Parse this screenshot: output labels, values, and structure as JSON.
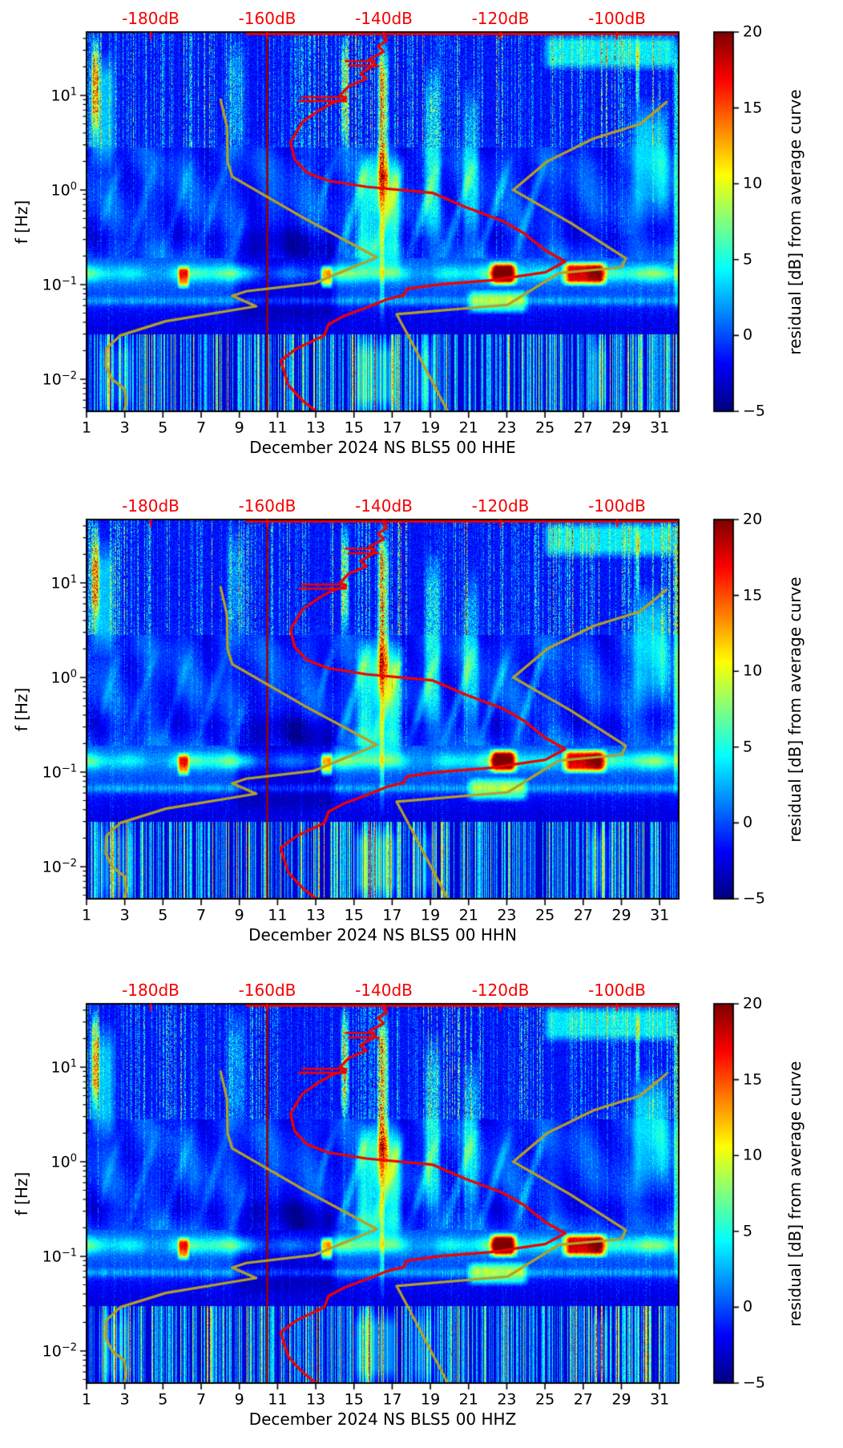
{
  "figure": {
    "background": "#ffffff"
  },
  "chart_data": {
    "type": "heatmap",
    "description": "Three seismic spectrogram panels (PPSD residual vs day-of-month and frequency) with jet colormap, overlaid mean PSD curve (red), low/high noise-model curves (olive), red top dB axis and -160dB dark-red reference line.",
    "panels": [
      {
        "channel": "HHE",
        "xlabel": "December 2024 NS BLS5 00 HHE"
      },
      {
        "channel": "HHN",
        "xlabel": "December 2024 NS BLS5 00 HHN"
      },
      {
        "channel": "HHZ",
        "xlabel": "December 2024 NS BLS5 00 HHZ"
      }
    ],
    "x_axis": {
      "domain_days": [
        1,
        32
      ],
      "ticks": [
        1,
        3,
        5,
        7,
        9,
        11,
        13,
        15,
        17,
        19,
        21,
        23,
        25,
        27,
        29,
        31
      ],
      "tick_labels": [
        "1",
        "3",
        "5",
        "7",
        "9",
        "11",
        "13",
        "15",
        "17",
        "19",
        "21",
        "23",
        "25",
        "27",
        "29",
        "31"
      ]
    },
    "y_axis": {
      "label": "f [Hz]",
      "scale": "log",
      "domain_hz": [
        0.0046,
        46.7
      ],
      "ticks": [
        10,
        1,
        0.1,
        0.01
      ],
      "tick_labels": [
        {
          "mant": "10",
          "exp": "1"
        },
        {
          "mant": "10",
          "exp": "0"
        },
        {
          "mant": "10",
          "exp": "−1"
        },
        {
          "mant": "10",
          "exp": "−2"
        }
      ]
    },
    "top_axis": {
      "color": "#f40000",
      "domain_db": [
        -191,
        -89.4
      ],
      "ticks": [
        -180,
        -160,
        -140,
        -120,
        -100
      ],
      "labels": [
        "-180dB",
        "-160dB",
        "-140dB",
        "-120dB",
        "-100dB"
      ]
    },
    "colorbar": {
      "label": "residual [dB] from average curve",
      "colormap": "jet",
      "domain": [
        -5,
        20
      ],
      "ticks": [
        20,
        15,
        10,
        5,
        0,
        -5
      ],
      "tick_labels": [
        "20",
        "15",
        "10",
        "5",
        "0",
        "−5"
      ]
    },
    "reference_line": {
      "db": -160,
      "color": "#990000"
    },
    "overlays": {
      "mean_psd_curve": {
        "color": "#f00000",
        "points_db_hz": [
          [
            -140,
            46
          ],
          [
            -139.5,
            38
          ],
          [
            -141,
            33
          ],
          [
            -140,
            29
          ],
          [
            -142.5,
            24
          ],
          [
            -141.5,
            21
          ],
          [
            -144,
            17
          ],
          [
            -143,
            15
          ],
          [
            -146,
            12.5
          ],
          [
            -147.5,
            10
          ],
          [
            -146.5,
            9.3
          ],
          [
            -149,
            8.2
          ],
          [
            -151.5,
            6.7
          ],
          [
            -154,
            5.2
          ],
          [
            -156,
            3.2
          ],
          [
            -155.3,
            2.1
          ],
          [
            -153.2,
            1.53
          ],
          [
            -149.5,
            1.25
          ],
          [
            -143,
            1.08
          ],
          [
            -131.6,
            0.93
          ],
          [
            -126,
            0.66
          ],
          [
            -119.6,
            0.47
          ],
          [
            -116,
            0.35
          ],
          [
            -112.3,
            0.23
          ],
          [
            -108.9,
            0.175
          ],
          [
            -112.3,
            0.135
          ],
          [
            -121.6,
            0.111
          ],
          [
            -130.6,
            0.1
          ],
          [
            -136.1,
            0.09
          ],
          [
            -136.6,
            0.077
          ],
          [
            -139.4,
            0.07
          ],
          [
            -143,
            0.057
          ],
          [
            -146.7,
            0.047
          ],
          [
            -149.5,
            0.038
          ],
          [
            -150.2,
            0.029
          ],
          [
            -155,
            0.021
          ],
          [
            -157.7,
            0.0157
          ],
          [
            -156.4,
            0.0087
          ],
          [
            -154,
            0.006
          ],
          [
            -151.5,
            0.0045
          ]
        ],
        "whiskers": [
          {
            "f": 9.6,
            "db": [
              -154,
              -146.5
            ]
          },
          {
            "f": 8.7,
            "db": [
              -154.5,
              -146.5
            ]
          },
          {
            "f": 20.5,
            "db": [
              -146,
              -141
            ]
          },
          {
            "f": 23,
            "db": [
              -146.5,
              -141.5
            ]
          }
        ],
        "top_clip_segment_db": [
          -163.5,
          -89.4
        ]
      },
      "noise_model_low": {
        "color": "#b4a028",
        "points_db_hz": [
          [
            -168,
            9.0
          ],
          [
            -166.9,
            4.6
          ],
          [
            -166.8,
            2.0
          ],
          [
            -166,
            1.38
          ],
          [
            -153.6,
            0.5
          ],
          [
            -141.2,
            0.194
          ],
          [
            -152,
            0.103
          ],
          [
            -163.6,
            0.085
          ],
          [
            -166,
            0.076
          ],
          [
            -161.9,
            0.059
          ],
          [
            -177.4,
            0.041
          ],
          [
            -185.2,
            0.029
          ],
          [
            -187.6,
            0.021
          ],
          [
            -187.7,
            0.0137
          ],
          [
            -186.6,
            0.01
          ],
          [
            -184.5,
            0.0079
          ],
          [
            -184.2,
            0.0056
          ],
          [
            -184.6,
            0.0044
          ]
        ]
      },
      "noise_model_high": {
        "color": "#b4a028",
        "points_db_hz": [
          [
            -91.5,
            8.5
          ],
          [
            -96,
            5.0
          ],
          [
            -104,
            3.5
          ],
          [
            -112,
            2.0
          ],
          [
            -117.8,
            1.0
          ],
          [
            -108,
            0.45
          ],
          [
            -98.5,
            0.19
          ],
          [
            -99.2,
            0.152
          ],
          [
            -110,
            0.132
          ],
          [
            -118.8,
            0.061
          ],
          [
            -137.8,
            0.0486
          ],
          [
            -135.7,
            0.028
          ],
          [
            -128.9,
            0.0044
          ]
        ]
      }
    },
    "heatmap": {
      "seeds": [
        11,
        22,
        33
      ],
      "events": [
        {
          "d0": 1.2,
          "d1": 1.7,
          "lf0": 0.55,
          "lf1": 1.67,
          "amp": 13,
          "gate": 1
        },
        {
          "d0": 1.0,
          "d1": 2.6,
          "lf0": 0.2,
          "lf1": 1.5,
          "amp": 4.5,
          "gate": 0
        },
        {
          "d0": 8.2,
          "d1": 9.4,
          "lf0": 0.3,
          "lf1": 1.67,
          "amp": 4.5,
          "gate": 1
        },
        {
          "d0": 14.25,
          "d1": 14.75,
          "lf0": 0.4,
          "lf1": 1.67,
          "amp": 11,
          "gate": 1
        },
        {
          "d0": 16.15,
          "d1": 16.85,
          "lf0": -0.3,
          "lf1": 1.67,
          "amp": 13,
          "gate": 1
        },
        {
          "d0": 15.0,
          "d1": 17.6,
          "lf0": -0.95,
          "lf1": 0.5,
          "amp": 6,
          "gate": 0
        },
        {
          "d0": 18.6,
          "d1": 19.6,
          "lf0": -0.6,
          "lf1": 1.4,
          "amp": 7,
          "gate": 1
        },
        {
          "d0": 20.6,
          "d1": 21.6,
          "lf0": -0.7,
          "lf1": 1.2,
          "amp": 5.5,
          "gate": 1
        },
        {
          "d0": 22.0,
          "d1": 23.6,
          "lf0": -1.02,
          "lf1": -0.74,
          "amp": 16,
          "gate": 0
        },
        {
          "d0": 25.8,
          "d1": 28.3,
          "lf0": -1.02,
          "lf1": -0.74,
          "amp": 16,
          "gate": 0
        },
        {
          "d0": 5.7,
          "d1": 6.4,
          "lf0": -1.05,
          "lf1": -0.78,
          "amp": 11,
          "gate": 0
        },
        {
          "d0": 13.2,
          "d1": 13.9,
          "lf0": -1.05,
          "lf1": -0.78,
          "amp": 11,
          "gate": 0
        },
        {
          "d0": 24.8,
          "d1": 32,
          "lf0": 1.25,
          "lf1": 1.67,
          "amp": 5.5,
          "gate": 0
        },
        {
          "d0": 29.4,
          "d1": 31.6,
          "lf0": -0.4,
          "lf1": 1.0,
          "amp": 4.5,
          "gate": 0
        },
        {
          "d0": 20.8,
          "d1": 24.2,
          "lf0": -1.32,
          "lf1": -1.04,
          "amp": 7,
          "gate": 0
        },
        {
          "d0": 8.6,
          "d1": 14.2,
          "lf0": -1.45,
          "lf1": -0.35,
          "amp": -2.8,
          "gate": 0
        },
        {
          "d0": 14.8,
          "d1": 17.4,
          "lf0": -2.4,
          "lf1": -1.52,
          "amp": 4.5,
          "gate": 0
        },
        {
          "d0": 1.4,
          "d1": 3.7,
          "lf0": -2.4,
          "lf1": -1.52,
          "amp": 2.5,
          "gate": 0
        },
        {
          "d0": 17.8,
          "d1": 19.4,
          "lf0": -2.4,
          "lf1": -1.52,
          "amp": 2.5,
          "gate": 0
        },
        {
          "d0": 27.2,
          "d1": 28.4,
          "lf0": -2.4,
          "lf1": -1.52,
          "amp": 3,
          "gate": 0
        },
        {
          "d0": 29.7,
          "d1": 29.95,
          "lf0": 0.8,
          "lf1": 1.67,
          "amp": 9,
          "gate": 1
        },
        {
          "d0": 16.3,
          "d1": 16.6,
          "lf0": -1.52,
          "lf1": 1.67,
          "amp": 6,
          "gate": 1
        },
        {
          "d0": 31.7,
          "d1": 32,
          "lf0": -1.3,
          "lf1": 1.67,
          "amp": 8,
          "gate": 1
        }
      ]
    }
  }
}
